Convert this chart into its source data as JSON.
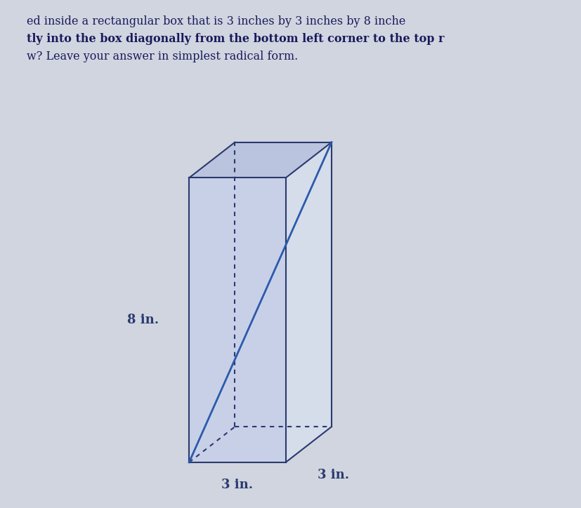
{
  "background_color": "#d0d5e0",
  "box_color": "#2a3a6e",
  "diagonal_color": "#2a5aaa",
  "face_fill_front": "#c8d0e8",
  "face_fill_right": "#d5dcea",
  "face_fill_top": "#bac4de",
  "text_color": "#2a3a6e",
  "text_lines": [
    "ed inside a rectangular box that is 3 inches by 3 inches by 8 inche",
    "tly into the box diagonally from the bottom left corner to the top r",
    "w? Leave your answer in simplest radical form."
  ],
  "label_8in": "8 in.",
  "label_3in_bottom": "3 in.",
  "label_3in_right": "3 in.",
  "figsize": [
    8.28,
    7.24
  ],
  "dpi": 100
}
